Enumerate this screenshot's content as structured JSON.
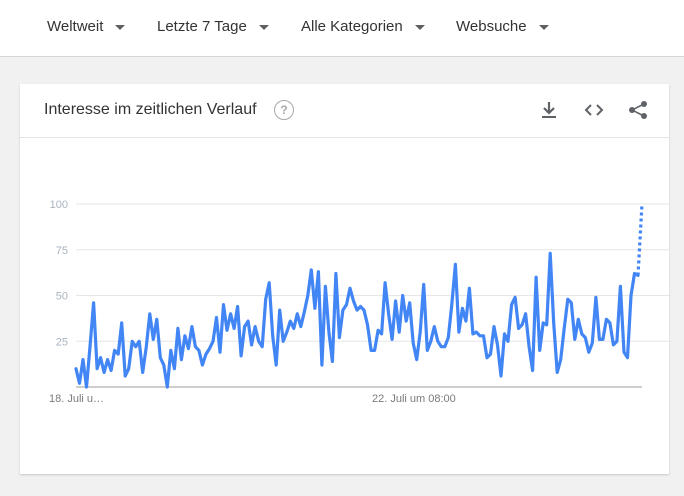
{
  "filters": [
    {
      "label": "Weltweit"
    },
    {
      "label": "Letzte 7 Tage"
    },
    {
      "label": "Alle Kategorien"
    },
    {
      "label": "Websuche"
    }
  ],
  "card": {
    "title": "Interesse im zeitlichen Verlauf",
    "help_icon": "help-circle-icon",
    "actions": [
      "download-icon",
      "embed-code-icon",
      "share-icon"
    ]
  },
  "chart_data": {
    "type": "line",
    "yticks": [
      25,
      50,
      75,
      100
    ],
    "ylim": [
      0,
      100
    ],
    "xtick_labels": [
      "18. Juli u…",
      "22. Juli um 08:00"
    ],
    "series_color": "#4285f4",
    "grid": true,
    "values": [
      10,
      2,
      15,
      0,
      22,
      46,
      10,
      16,
      8,
      15,
      9,
      20,
      18,
      35,
      6,
      10,
      25,
      22,
      25,
      8,
      22,
      40,
      26,
      37,
      16,
      12,
      0,
      20,
      10,
      32,
      15,
      28,
      21,
      33,
      22,
      20,
      12,
      18,
      21,
      25,
      38,
      19,
      45,
      31,
      40,
      32,
      44,
      17,
      33,
      36,
      23,
      33,
      25,
      22,
      48,
      57,
      28,
      12,
      42,
      25,
      30,
      36,
      32,
      40,
      33,
      41,
      50,
      64,
      43,
      63,
      12,
      55,
      30,
      14,
      62,
      27,
      42,
      45,
      54,
      47,
      42,
      44,
      42,
      34,
      20,
      20,
      31,
      29,
      57,
      40,
      26,
      47,
      30,
      50,
      36,
      46,
      24,
      15,
      30,
      56,
      20,
      25,
      33,
      25,
      22,
      22,
      27,
      45,
      67,
      30,
      43,
      36,
      54,
      29,
      30,
      28,
      28,
      16,
      18,
      33,
      23,
      6,
      29,
      25,
      45,
      49,
      32,
      34,
      40,
      22,
      9,
      60,
      20,
      35,
      34,
      73,
      35,
      8,
      15,
      32,
      48,
      46,
      26,
      37,
      29,
      27,
      19,
      24,
      49,
      26,
      26,
      37,
      35,
      23,
      25,
      55,
      19,
      16,
      50,
      62,
      61
    ],
    "partial_values": [
      61,
      100
    ]
  }
}
